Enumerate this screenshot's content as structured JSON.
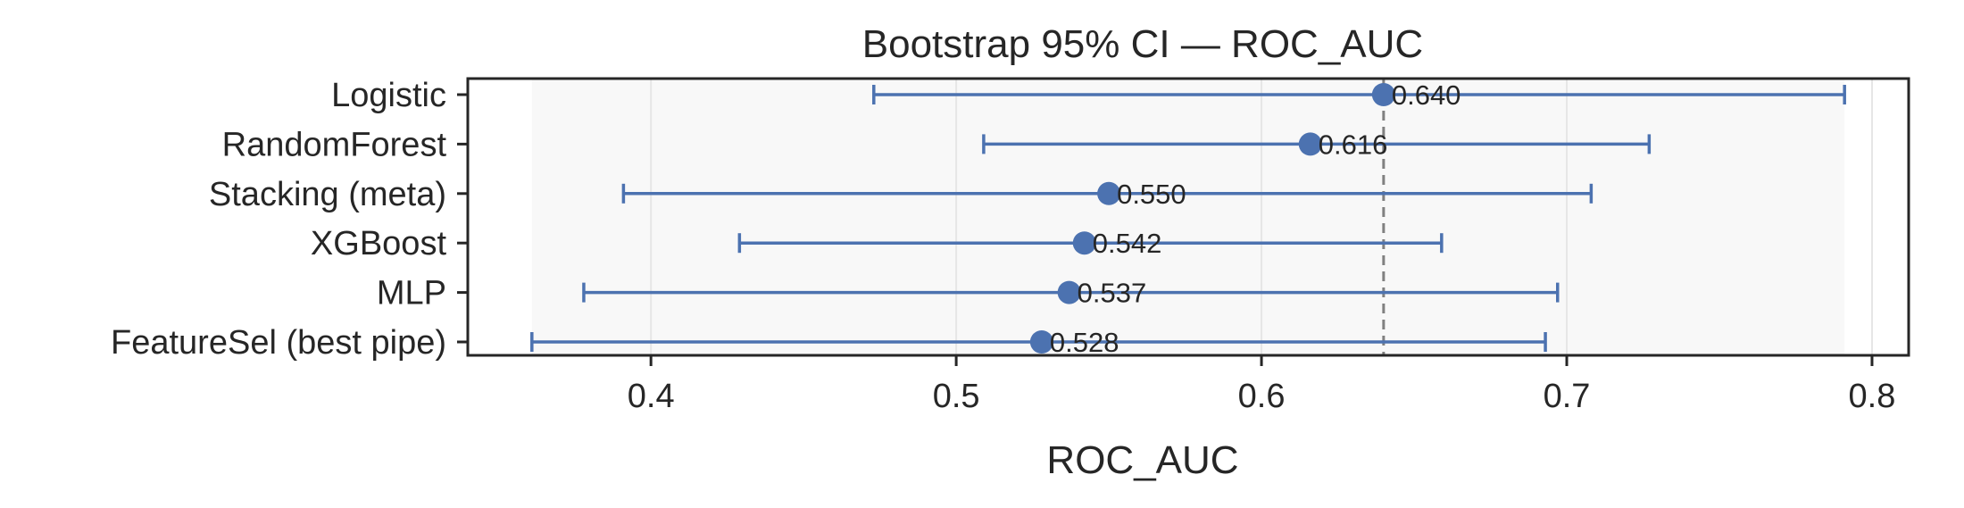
{
  "chart_data": {
    "type": "errorbar",
    "title": "Bootstrap 95% CI — ROC_AUC",
    "xlabel": "ROC_AUC",
    "ylabel": "",
    "xlim": [
      0.34,
      0.812
    ],
    "xticks": [
      0.4,
      0.5,
      0.6,
      0.7,
      0.8
    ],
    "xtick_labels": [
      "0.4",
      "0.5",
      "0.6",
      "0.7",
      "0.8"
    ],
    "grid": true,
    "shaded_range": [
      0.361,
      0.791
    ],
    "reference_line": 0.64,
    "categories": [
      "Logistic",
      "RandomForest",
      "Stacking (meta)",
      "XGBoost",
      "MLP",
      "FeatureSel (best pipe)"
    ],
    "values": [
      0.64,
      0.616,
      0.55,
      0.542,
      0.537,
      0.528
    ],
    "value_labels": [
      "0.640",
      "0.616",
      "0.550",
      "0.542",
      "0.537",
      "0.528"
    ],
    "ci_lower": [
      0.473,
      0.509,
      0.391,
      0.429,
      0.378,
      0.361
    ],
    "ci_upper": [
      0.791,
      0.727,
      0.708,
      0.659,
      0.697,
      0.693
    ],
    "colors": {
      "marker": "#4c72b0",
      "reference_line": "#808080",
      "shade": "#f8f8f8",
      "grid": "#e6e6e6",
      "axes": "#262626"
    }
  }
}
